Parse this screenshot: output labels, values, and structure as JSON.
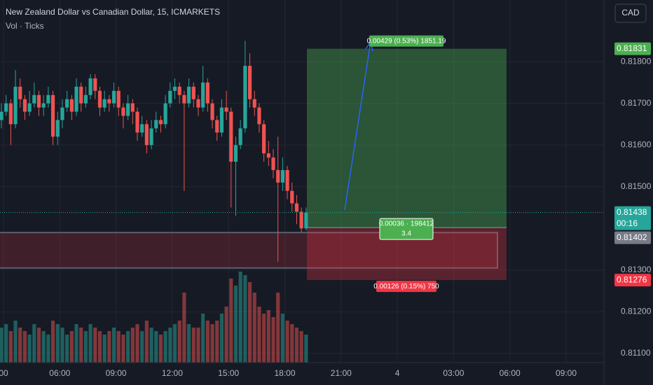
{
  "chart_data": {
    "type": "candlestick",
    "title": "New Zealand Dollar vs Canadian Dollar, 15, ICMARKETS",
    "subtitle": "Vol · Ticks",
    "currency": "CAD",
    "up_color": "#26a69a",
    "down_color": "#ef5350",
    "ylim": [
      0.81078,
      0.81948
    ],
    "yticks": [
      {
        "value": 0.818,
        "label": "0.81800"
      },
      {
        "value": 0.817,
        "label": "0.81700"
      },
      {
        "value": 0.816,
        "label": "0.81600"
      },
      {
        "value": 0.815,
        "label": "0.81500"
      },
      {
        "value": 0.813,
        "label": "0.81300"
      },
      {
        "value": 0.812,
        "label": "0.81200"
      },
      {
        "value": 0.811,
        "label": "0.81100"
      }
    ],
    "xticks": [
      "00",
      "06:00",
      "09:00",
      "12:00",
      "15:00",
      "18:00",
      "21:00",
      "4",
      "03:00",
      "06:00",
      "09:00"
    ],
    "grid": true,
    "candles": [
      [
        0.8166,
        0.817,
        0.8164,
        0.8168
      ],
      [
        0.8168,
        0.8172,
        0.8167,
        0.817
      ],
      [
        0.817,
        0.8171,
        0.816,
        0.8165
      ],
      [
        0.8165,
        0.8178,
        0.8164,
        0.8174
      ],
      [
        0.8174,
        0.8176,
        0.8169,
        0.8171
      ],
      [
        0.8171,
        0.8172,
        0.8166,
        0.8168
      ],
      [
        0.8168,
        0.8173,
        0.8167,
        0.817
      ],
      [
        0.817,
        0.8175,
        0.8169,
        0.8172
      ],
      [
        0.8172,
        0.8173,
        0.8167,
        0.8169
      ],
      [
        0.8169,
        0.8172,
        0.8167,
        0.817
      ],
      [
        0.817,
        0.8174,
        0.8169,
        0.8172
      ],
      [
        0.8172,
        0.8173,
        0.816,
        0.8162
      ],
      [
        0.8162,
        0.8168,
        0.816,
        0.8166
      ],
      [
        0.8166,
        0.8171,
        0.8164,
        0.8169
      ],
      [
        0.8169,
        0.8173,
        0.8168,
        0.8171
      ],
      [
        0.8171,
        0.8172,
        0.8166,
        0.8168
      ],
      [
        0.8168,
        0.8176,
        0.8167,
        0.8174
      ],
      [
        0.8174,
        0.8175,
        0.8168,
        0.817
      ],
      [
        0.817,
        0.8174,
        0.8169,
        0.8172
      ],
      [
        0.8172,
        0.8177,
        0.8171,
        0.8176
      ],
      [
        0.8176,
        0.8177,
        0.8171,
        0.8173
      ],
      [
        0.8173,
        0.8174,
        0.8167,
        0.8169
      ],
      [
        0.8169,
        0.8173,
        0.8168,
        0.8171
      ],
      [
        0.8171,
        0.8172,
        0.8168,
        0.817
      ],
      [
        0.817,
        0.8175,
        0.8169,
        0.8173
      ],
      [
        0.8173,
        0.8174,
        0.8167,
        0.8169
      ],
      [
        0.8169,
        0.817,
        0.8164,
        0.8167
      ],
      [
        0.8167,
        0.8172,
        0.8166,
        0.817
      ],
      [
        0.817,
        0.8171,
        0.8165,
        0.8168
      ],
      [
        0.8168,
        0.8169,
        0.8161,
        0.8163
      ],
      [
        0.8163,
        0.8167,
        0.8162,
        0.8165
      ],
      [
        0.8165,
        0.8166,
        0.8158,
        0.816
      ],
      [
        0.816,
        0.8166,
        0.8159,
        0.8164
      ],
      [
        0.8164,
        0.8168,
        0.8163,
        0.8166
      ],
      [
        0.8166,
        0.8167,
        0.8163,
        0.8165
      ],
      [
        0.8165,
        0.8172,
        0.8164,
        0.817
      ],
      [
        0.817,
        0.8175,
        0.8169,
        0.8173
      ],
      [
        0.8173,
        0.8176,
        0.8171,
        0.8174
      ],
      [
        0.8174,
        0.8175,
        0.817,
        0.8172
      ],
      [
        0.8172,
        0.8173,
        0.8149,
        0.817
      ],
      [
        0.817,
        0.8176,
        0.8169,
        0.8174
      ],
      [
        0.8174,
        0.8175,
        0.8169,
        0.8171
      ],
      [
        0.8171,
        0.8172,
        0.8167,
        0.8169
      ],
      [
        0.8169,
        0.8179,
        0.8168,
        0.8175
      ],
      [
        0.8175,
        0.8176,
        0.8168,
        0.817
      ],
      [
        0.817,
        0.8171,
        0.8164,
        0.8166
      ],
      [
        0.8166,
        0.8167,
        0.8161,
        0.8163
      ],
      [
        0.8163,
        0.8171,
        0.8162,
        0.8169
      ],
      [
        0.8169,
        0.8173,
        0.8166,
        0.8168
      ],
      [
        0.8168,
        0.8169,
        0.8145,
        0.8156
      ],
      [
        0.8156,
        0.8162,
        0.8143,
        0.816
      ],
      [
        0.816,
        0.8166,
        0.8159,
        0.8164
      ],
      [
        0.8164,
        0.8185,
        0.8163,
        0.8179
      ],
      [
        0.8179,
        0.8182,
        0.8169,
        0.8171
      ],
      [
        0.8171,
        0.8173,
        0.8167,
        0.8169
      ],
      [
        0.8169,
        0.817,
        0.8163,
        0.8165
      ],
      [
        0.8165,
        0.8166,
        0.8156,
        0.8158
      ],
      [
        0.8158,
        0.8161,
        0.8155,
        0.8157
      ],
      [
        0.8157,
        0.8159,
        0.8152,
        0.8154
      ],
      [
        0.8154,
        0.8162,
        0.8132,
        0.8151
      ],
      [
        0.8151,
        0.8157,
        0.8149,
        0.8154
      ],
      [
        0.8154,
        0.8155,
        0.8147,
        0.8149
      ],
      [
        0.8149,
        0.8151,
        0.8144,
        0.8146
      ],
      [
        0.8146,
        0.8148,
        0.8141,
        0.8144
      ],
      [
        0.8144,
        0.8145,
        0.8139,
        0.814
      ],
      [
        0.814,
        0.8145,
        0.81395,
        0.81438
      ]
    ],
    "volumes": [
      50,
      55,
      45,
      60,
      50,
      45,
      40,
      55,
      50,
      45,
      40,
      60,
      55,
      50,
      40,
      45,
      55,
      50,
      45,
      55,
      50,
      45,
      40,
      45,
      50,
      45,
      40,
      45,
      50,
      55,
      45,
      60,
      50,
      45,
      40,
      45,
      50,
      55,
      60,
      100,
      55,
      50,
      50,
      70,
      60,
      55,
      60,
      70,
      80,
      120,
      110,
      130,
      125,
      115,
      100,
      80,
      70,
      75,
      65,
      100,
      70,
      60,
      55,
      50,
      45,
      40
    ],
    "last_price": 0.81438,
    "countdown": "00:16",
    "zone": [
      0.8139,
      0.81305
    ],
    "position": {
      "target": 0.81831,
      "entry": 0.81402,
      "stop": 0.81276,
      "target_label": "0.00429 (0.53%) 1851.19",
      "mid_label": [
        "0.00036 · 198412",
        "3.4"
      ],
      "stop_label": "0.00126 (0.15%) 750"
    }
  }
}
